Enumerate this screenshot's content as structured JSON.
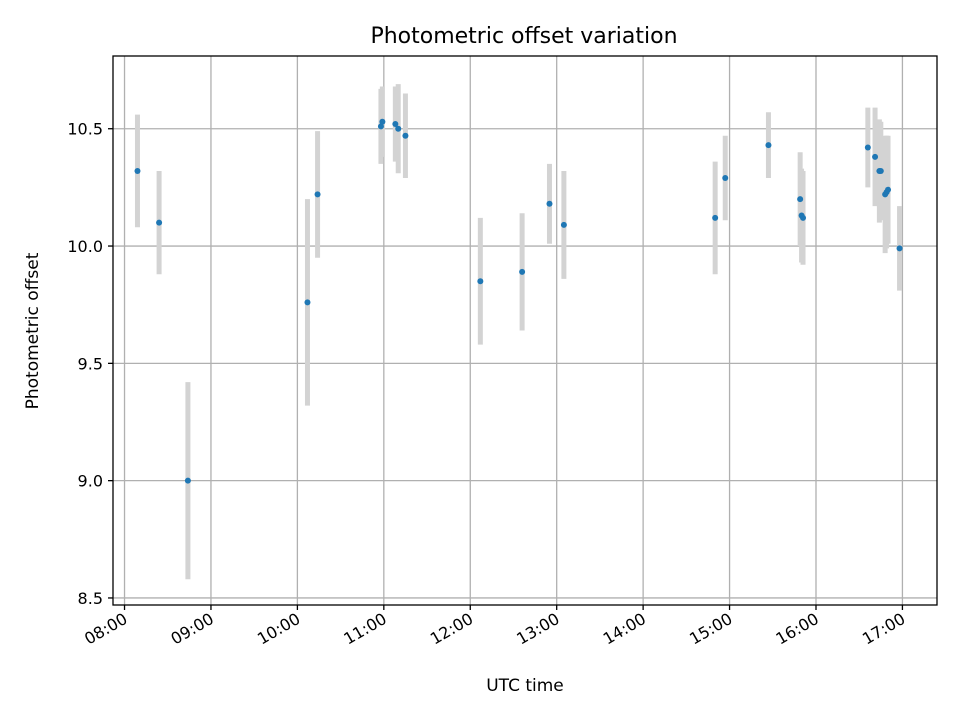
{
  "chart_data": {
    "type": "scatter",
    "title": "Photometric offset variation",
    "xlabel": "UTC time",
    "ylabel": "Photometric offset",
    "x_axis": "time",
    "xlim": [
      "07:52",
      "17:24"
    ],
    "ylim": [
      8.47,
      10.81
    ],
    "xticks": [
      "08:00",
      "09:00",
      "10:00",
      "11:00",
      "12:00",
      "13:00",
      "14:00",
      "15:00",
      "16:00",
      "17:00"
    ],
    "yticks": [
      8.5,
      9.0,
      9.5,
      10.0,
      10.5
    ],
    "ytick_labels": [
      "8.5",
      "9.0",
      "9.5",
      "10.0",
      "10.5"
    ],
    "grid": true,
    "legend": "none",
    "colors": {
      "marker": "#1f77b4",
      "errorbar": "#d3d3d3"
    },
    "points": [
      {
        "x": "08:09",
        "y": 10.32,
        "yerr": 0.24
      },
      {
        "x": "08:24",
        "y": 10.1,
        "yerr": 0.22
      },
      {
        "x": "08:44",
        "y": 9.0,
        "yerr": 0.42
      },
      {
        "x": "10:07",
        "y": 9.76,
        "yerr": 0.44
      },
      {
        "x": "10:14",
        "y": 10.22,
        "yerr": 0.27
      },
      {
        "x": "10:58",
        "y": 10.51,
        "yerr": 0.16
      },
      {
        "x": "10:59",
        "y": 10.53,
        "yerr": 0.15
      },
      {
        "x": "11:08",
        "y": 10.52,
        "yerr": 0.16
      },
      {
        "x": "11:10",
        "y": 10.5,
        "yerr": 0.19
      },
      {
        "x": "11:15",
        "y": 10.47,
        "yerr": 0.18
      },
      {
        "x": "12:07",
        "y": 9.85,
        "yerr": 0.27
      },
      {
        "x": "12:36",
        "y": 9.89,
        "yerr": 0.25
      },
      {
        "x": "12:55",
        "y": 10.18,
        "yerr": 0.17
      },
      {
        "x": "13:05",
        "y": 10.09,
        "yerr": 0.23
      },
      {
        "x": "14:50",
        "y": 10.12,
        "yerr": 0.24
      },
      {
        "x": "14:57",
        "y": 10.29,
        "yerr": 0.18
      },
      {
        "x": "15:27",
        "y": 10.43,
        "yerr": 0.14
      },
      {
        "x": "15:49",
        "y": 10.2,
        "yerr": 0.2
      },
      {
        "x": "15:50",
        "y": 10.13,
        "yerr": 0.2
      },
      {
        "x": "15:51",
        "y": 10.12,
        "yerr": 0.2
      },
      {
        "x": "16:36",
        "y": 10.42,
        "yerr": 0.17
      },
      {
        "x": "16:41",
        "y": 10.38,
        "yerr": 0.21
      },
      {
        "x": "16:44",
        "y": 10.32,
        "yerr": 0.22
      },
      {
        "x": "16:45",
        "y": 10.32,
        "yerr": 0.21
      },
      {
        "x": "16:48",
        "y": 10.22,
        "yerr": 0.25
      },
      {
        "x": "16:49",
        "y": 10.23,
        "yerr": 0.24
      },
      {
        "x": "16:50",
        "y": 10.24,
        "yerr": 0.23
      },
      {
        "x": "16:58",
        "y": 9.99,
        "yerr": 0.18
      }
    ]
  }
}
